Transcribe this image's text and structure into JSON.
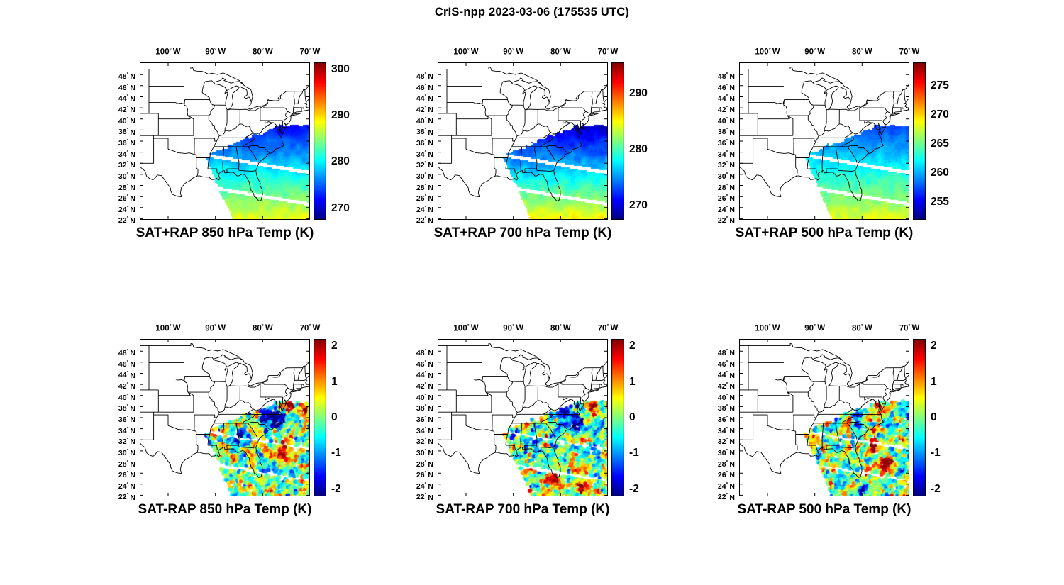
{
  "figure": {
    "title": "CrIS-npp 2023-03-06 (175535 UTC)"
  },
  "axes": {
    "x_tick_labels": [
      "100°W",
      "90°W",
      "80°W",
      "70°W"
    ],
    "x_tick_lons": [
      -100,
      -90,
      -80,
      -70
    ],
    "y_tick_labels": [
      "48°N",
      "46°N",
      "44°N",
      "42°N",
      "40°N",
      "38°N",
      "36°N",
      "34°N",
      "32°N",
      "30°N",
      "28°N",
      "26°N",
      "24°N",
      "22°N"
    ],
    "y_tick_lats": [
      48,
      46,
      44,
      42,
      40,
      38,
      36,
      34,
      32,
      30,
      28,
      26,
      24,
      22
    ],
    "lon_range": [
      -106,
      -70
    ],
    "lat_range": [
      21.8,
      50.2
    ]
  },
  "swath_mask": {
    "t_max": 64.2,
    "lat_max": 38.8,
    "u_min": -151,
    "gaps": [
      [
        20.3,
        0.62
      ],
      [
        14.6,
        0.62
      ]
    ]
  },
  "chart_data": [
    {
      "row": 0,
      "col": 0,
      "type": "heatmap",
      "seed": 11,
      "title": "SAT+RAP 850 hPa Temp (K)",
      "units": "K",
      "colormap": "jet",
      "colorbar": {
        "range": [
          267.5,
          301.5
        ],
        "tick_values": [
          300,
          290,
          280,
          270
        ],
        "tick_labels": [
          "300",
          "290",
          "280",
          "270"
        ]
      },
      "field": {
        "value_south": 288.0,
        "lapse_per_deg": 0.97,
        "noise_amp": 1.2,
        "description": "CrIS+RAP retrieved 850 hPa temperature swath over SE US / W Atlantic: ~288 K (yellow-green) near 22N to ~272 K (blue) near 38N, white inter-swath gaps"
      }
    },
    {
      "row": 0,
      "col": 1,
      "type": "heatmap",
      "seed": 22,
      "title": "SAT+RAP 700 hPa Temp (K)",
      "units": "K",
      "colormap": "jet",
      "colorbar": {
        "range": [
          267.5,
          295.5
        ],
        "tick_values": [
          290,
          280,
          270
        ],
        "tick_labels": [
          "290",
          "280",
          "270"
        ]
      },
      "field": {
        "value_south": 285.0,
        "lapse_per_deg": 0.94,
        "noise_amp": 1.2,
        "description": "700 hPa temperature: ~285 K (yellow) south to ~269 K (dark blue) north"
      }
    },
    {
      "row": 0,
      "col": 2,
      "type": "heatmap",
      "seed": 33,
      "title": "SAT+RAP 500 hPa Temp (K)",
      "units": "K",
      "colormap": "jet",
      "colorbar": {
        "range": [
          252.0,
          279.0
        ],
        "tick_values": [
          275,
          270,
          265,
          260,
          255
        ],
        "tick_labels": [
          "275",
          "270",
          "265",
          "260",
          "255"
        ]
      },
      "field": {
        "value_south": 268.0,
        "lapse_per_deg": 0.64,
        "noise_amp": 0.9,
        "description": "500 hPa temperature: ~268 K (green-yellow) south to ~257 K (blue) north"
      }
    },
    {
      "row": 1,
      "col": 0,
      "type": "scatter",
      "seed": 44,
      "title": "SAT-RAP 850 hPa Temp (K)",
      "units": "K",
      "colormap": "jet",
      "colorbar": {
        "range": [
          -2.2,
          2.2
        ],
        "tick_values": [
          2,
          1,
          0,
          -1,
          -2
        ],
        "tick_labels": [
          "2",
          "1",
          "0",
          "-1",
          "-2"
        ]
      },
      "field": {
        "noise_amp": 1.6,
        "blobs": [
          [
            -78.6,
            36.6,
            1.7,
            -2.6
          ],
          [
            -76.6,
            35.2,
            1.2,
            -2.2
          ],
          [
            -74.3,
            38.2,
            1.2,
            2.6
          ],
          [
            -75.0,
            30.3,
            2.2,
            1.7
          ],
          [
            -84.5,
            32.3,
            1.3,
            -1.8
          ],
          [
            -70.9,
            37.2,
            1.0,
            2.0
          ]
        ],
        "description": "850 hPa SAT minus RAP differences (K): strong negative (dark blue) cluster over VA/NC, positive (red) patches near 38N offshore and ~30N band"
      }
    },
    {
      "row": 1,
      "col": 1,
      "type": "scatter",
      "seed": 55,
      "title": "SAT-RAP 700 hPa Temp (K)",
      "units": "K",
      "colormap": "jet",
      "colorbar": {
        "range": [
          -2.2,
          2.2
        ],
        "tick_values": [
          2,
          1,
          0,
          -1,
          -2
        ],
        "tick_labels": [
          "2",
          "1",
          "0",
          "-1",
          "-2"
        ]
      },
      "field": {
        "noise_amp": 1.6,
        "blobs": [
          [
            -78.8,
            36.4,
            1.9,
            -2.4
          ],
          [
            -76.5,
            34.2,
            1.5,
            -1.6
          ],
          [
            -81.5,
            24.6,
            1.4,
            2.3
          ],
          [
            -75.5,
            23.8,
            1.6,
            1.6
          ],
          [
            -72.5,
            37.5,
            1.0,
            1.8
          ]
        ],
        "description": "700 hPa differences: negative (blue) over Carolinas/Virginia, positive (orange-red) near south Florida and 24N"
      }
    },
    {
      "row": 1,
      "col": 2,
      "type": "scatter",
      "seed": 66,
      "title": "SAT-RAP 500 hPa Temp (K)",
      "units": "K",
      "colormap": "jet",
      "colorbar": {
        "range": [
          -2.2,
          2.2
        ],
        "tick_values": [
          2,
          1,
          0,
          -1,
          -2
        ],
        "tick_labels": [
          "2",
          "1",
          "0",
          "-1",
          "-2"
        ]
      },
      "field": {
        "noise_amp": 1.6,
        "blobs": [
          [
            -74.8,
            27.3,
            1.6,
            2.4
          ],
          [
            -77.2,
            30.9,
            1.4,
            1.9
          ],
          [
            -75.6,
            37.4,
            1.3,
            1.8
          ],
          [
            -80.6,
            35.4,
            1.3,
            -1.6
          ],
          [
            -79.8,
            22.9,
            0.9,
            -2.3
          ],
          [
            -71.5,
            26.0,
            1.2,
            -1.8
          ]
        ],
        "description": "500 hPa differences: mixed speckle, red patches ~27N offshore and near 31N, scattered blues"
      }
    }
  ]
}
